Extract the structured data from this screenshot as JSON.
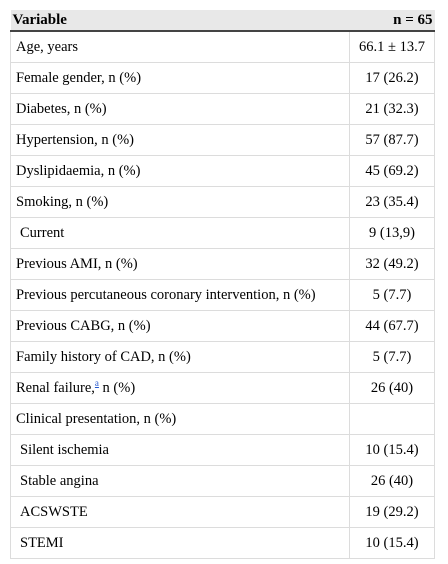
{
  "table": {
    "header": {
      "variable": "Variable",
      "n": "n = 65"
    },
    "rows": [
      {
        "label": "Age, years",
        "value": "66.1 ± 13.7",
        "indent": false
      },
      {
        "label": "Female gender, n (%)",
        "value": "17 (26.2)",
        "indent": false
      },
      {
        "label": "Diabetes, n (%)",
        "value": "21 (32.3)",
        "indent": false
      },
      {
        "label": "Hypertension, n (%)",
        "value": "57 (87.7)",
        "indent": false
      },
      {
        "label": "Dyslipidaemia, n (%)",
        "value": "45 (69.2)",
        "indent": false
      },
      {
        "label": "Smoking, n (%)",
        "value": "23 (35.4)",
        "indent": false
      },
      {
        "label": "Current",
        "value": "9 (13,9)",
        "indent": true
      },
      {
        "label": "Previous AMI, n (%)",
        "value": "32 (49.2)",
        "indent": false
      },
      {
        "label": "Previous percutaneous coronary intervention, n (%)",
        "value": "5 (7.7)",
        "indent": false
      },
      {
        "label": "Previous CABG, n (%)",
        "value": "44 (67.7)",
        "indent": false
      },
      {
        "label": "Family history of CAD, n (%)",
        "value": "5 (7.7)",
        "indent": false
      },
      {
        "label": "Renal failure,",
        "footnote": "a",
        "label_suffix": " n (%)",
        "value": "26 (40)",
        "indent": false
      },
      {
        "label": "Clinical presentation, n (%)",
        "value": "",
        "indent": false
      },
      {
        "label": "Silent ischemia",
        "value": "10 (15.4)",
        "indent": true
      },
      {
        "label": "Stable angina",
        "value": "26 (40)",
        "indent": true
      },
      {
        "label": "ACSWSTE",
        "value": "19 (29.2)",
        "indent": true
      },
      {
        "label": "STEMI",
        "value": "10 (15.4)",
        "indent": true
      }
    ],
    "colors": {
      "header_bg": "#e8e8e8",
      "grid": "#dcdcdc",
      "footnote_link": "#2255cc"
    }
  }
}
